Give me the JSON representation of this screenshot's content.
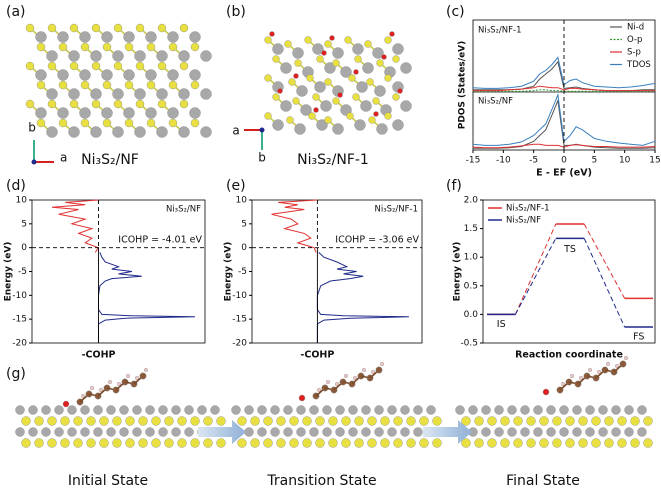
{
  "panel_labels": [
    "(a)",
    "(b)",
    "(c)",
    "(d)",
    "(e)",
    "(f)",
    "(g)"
  ],
  "structures": [
    {
      "label": "Ni₃S₂/NF",
      "axes": [
        "b",
        "a"
      ]
    },
    {
      "label": "Ni₃S₂/NF-1",
      "axes": [
        "a",
        "b"
      ]
    }
  ],
  "states": [
    "Initial State",
    "Transition State",
    "Final State"
  ],
  "chart_data": [
    {
      "type": "line",
      "label": "Ni₃S₂/NF-1",
      "ylabel": "PDOS (States/eV)",
      "legend": "upper right",
      "x": [
        -15,
        -13,
        -11,
        -9,
        -7,
        -5,
        -4,
        -3,
        -2,
        -1,
        0,
        1,
        2,
        3,
        5,
        7,
        9,
        11,
        13,
        15
      ],
      "xlim": [
        -15,
        15
      ],
      "ylim": [
        0,
        10
      ],
      "series": [
        {
          "name": "Ni-d",
          "color": "#555555",
          "values": [
            0.3,
            0.3,
            0.3,
            0.3,
            0.4,
            0.8,
            1.8,
            2.5,
            3.2,
            4.2,
            0.5,
            0.6,
            0.7,
            0.5,
            0.3,
            0.2,
            0.2,
            0.2,
            0.3,
            0.3
          ]
        },
        {
          "name": "O-p",
          "color": "#2ca02c",
          "dashed": true,
          "values": [
            0.1,
            0.1,
            0.1,
            0.1,
            0.1,
            0.2,
            0.3,
            0.3,
            0.2,
            0.2,
            0.1,
            0.1,
            0.1,
            0.1,
            0.1,
            0.1,
            0.1,
            0.1,
            0.1,
            0.1
          ]
        },
        {
          "name": "S-p",
          "color": "#e03030",
          "values": [
            0.2,
            0.2,
            0.2,
            0.3,
            0.4,
            0.6,
            0.8,
            0.7,
            0.6,
            0.6,
            0.3,
            0.5,
            0.5,
            0.4,
            0.3,
            0.2,
            0.2,
            0.2,
            0.2,
            0.2
          ]
        },
        {
          "name": "TDOS",
          "color": "#3a7fc1",
          "values": [
            0.6,
            0.5,
            0.5,
            0.6,
            0.8,
            1.5,
            2.5,
            3,
            3.8,
            4.8,
            1,
            1.6,
            1.8,
            1.3,
            0.8,
            0.7,
            0.6,
            0.7,
            0.9,
            1.2
          ]
        }
      ]
    },
    {
      "type": "line",
      "label": "Ni₃S₂/NF",
      "xlabel": "E - EF (eV)",
      "x": [
        -15,
        -13,
        -11,
        -9,
        -7,
        -5,
        -4,
        -3,
        -2,
        -1,
        0,
        1,
        2,
        3,
        5,
        7,
        9,
        11,
        13,
        15
      ],
      "xlim": [
        -15,
        15
      ],
      "xticks": [
        -15,
        -10,
        -5,
        0,
        5,
        10,
        15
      ],
      "ylim": [
        0,
        10
      ],
      "series": [
        {
          "color": "#555555",
          "values": [
            0.3,
            0.3,
            0.3,
            0.4,
            0.6,
            1.5,
            2.5,
            3.5,
            6,
            8.5,
            0.8,
            0.8,
            1,
            0.8,
            0.5,
            0.4,
            0.3,
            0.3,
            0.3,
            0.4
          ]
        },
        {
          "color": "#e03030",
          "values": [
            0.5,
            0.4,
            0.4,
            0.5,
            0.7,
            1,
            1,
            0.8,
            0.8,
            0.8,
            0.5,
            0.8,
            0.9,
            0.8,
            0.6,
            0.6,
            0.5,
            0.5,
            0.5,
            0.6
          ]
        },
        {
          "color": "#3a7fc1",
          "values": [
            1,
            0.8,
            0.8,
            1,
            1.4,
            2.5,
            3.5,
            4.5,
            7,
            9.5,
            1.5,
            2.5,
            4,
            3.5,
            2,
            1.5,
            1.2,
            1,
            0.8,
            1.5
          ]
        }
      ]
    },
    {
      "type": "line",
      "orientation": "vertical",
      "label": "Ni₃S₂/NF",
      "annotation": "ICOHP = -4.01 eV",
      "xlabel": "Energy (eV)",
      "ylabel": "-COHP",
      "x": [
        10,
        9.5,
        9,
        8.5,
        8,
        7,
        6,
        5,
        4,
        3,
        2,
        1,
        0,
        -1,
        -2,
        -3,
        -4,
        -4.5,
        -5,
        -5.5,
        -6,
        -6.5,
        -7,
        -8,
        -10,
        -13,
        -14,
        -14.3,
        -14.5,
        -14.8,
        -15.2,
        -16,
        -20
      ],
      "xlim": [
        -20,
        10
      ],
      "xticks": [
        -20,
        -15,
        -10,
        -5,
        0,
        5,
        10
      ],
      "ylim": [
        -1,
        1.6
      ],
      "series": [
        {
          "color": "#e03030",
          "values": [
            0,
            -0.5,
            -0.2,
            -0.7,
            -0.3,
            -0.6,
            -0.2,
            -0.4,
            -0.1,
            -0.3,
            -0.1,
            -0.2,
            0,
            -0.05,
            null,
            null,
            null,
            null,
            null,
            null,
            null,
            null,
            null,
            null,
            null,
            null,
            null,
            null,
            null,
            null,
            null,
            null,
            null
          ]
        },
        {
          "color": "#1f2a8a",
          "values": [
            null,
            null,
            null,
            null,
            null,
            null,
            null,
            null,
            null,
            null,
            null,
            null,
            null,
            0.02,
            0.05,
            0.1,
            0.3,
            0.2,
            0.5,
            0.3,
            0.65,
            0.2,
            0.1,
            0.02,
            0,
            0,
            0.05,
            0.5,
            1.45,
            0.4,
            0.1,
            0,
            0
          ]
        }
      ]
    },
    {
      "type": "line",
      "orientation": "vertical",
      "label": "Ni₃S₂/NF-1",
      "annotation": "ICOHP = -3.06 eV",
      "xlabel": "Energy (eV)",
      "ylabel": "-COHP",
      "x": [
        10,
        9.5,
        9,
        8.5,
        8,
        7,
        6,
        5,
        4,
        3,
        2,
        1,
        0,
        -1,
        -2,
        -3,
        -4,
        -4.5,
        -5,
        -5.5,
        -6,
        -6.5,
        -7,
        -8,
        -10,
        -13,
        -14,
        -14.3,
        -14.5,
        -14.8,
        -15.2,
        -16,
        -20
      ],
      "xlim": [
        -20,
        10
      ],
      "xticks": [
        -20,
        -15,
        -10,
        -5,
        0,
        5,
        10
      ],
      "ylim": [
        -1,
        1.6
      ],
      "series": [
        {
          "color": "#e03030",
          "values": [
            0,
            -0.6,
            -0.3,
            -0.5,
            -0.2,
            -0.7,
            -0.4,
            -0.3,
            -0.5,
            -0.2,
            -0.1,
            -0.3,
            -0.05,
            -0.02,
            null,
            null,
            null,
            null,
            null,
            null,
            null,
            null,
            null,
            null,
            null,
            null,
            null,
            null,
            null,
            null,
            null,
            null,
            null
          ]
        },
        {
          "color": "#1f2a8a",
          "values": [
            null,
            null,
            null,
            null,
            null,
            null,
            null,
            null,
            null,
            null,
            null,
            null,
            null,
            0.02,
            0.1,
            0.3,
            0.45,
            0.3,
            0.6,
            0.4,
            0.7,
            0.5,
            0.2,
            0.05,
            0,
            0,
            0.05,
            0.4,
            1.4,
            0.5,
            0.1,
            0,
            0
          ]
        }
      ]
    },
    {
      "type": "energy_profile",
      "ylabel": "Energy (eV)",
      "xlabel": "Reaction coordinate",
      "legend": "upper left",
      "categories": [
        "IS",
        "TS",
        "FS"
      ],
      "ylim": [
        -0.5,
        2.0
      ],
      "yticks": [
        -0.5,
        {
          "value": 0,
          "label": "0.0"
        },
        0.5,
        {
          "value": 1,
          "label": "1.0"
        },
        1.5,
        {
          "value": 2,
          "label": "2.0"
        }
      ],
      "series": [
        {
          "name": "Ni₃S₂/NF-1",
          "color": "#e03030",
          "values": [
            0,
            1.58,
            0.28
          ]
        },
        {
          "name": "Ni₃S₂/NF",
          "color": "#1f2a8a",
          "values": [
            0,
            1.33,
            -0.22
          ]
        }
      ]
    }
  ]
}
